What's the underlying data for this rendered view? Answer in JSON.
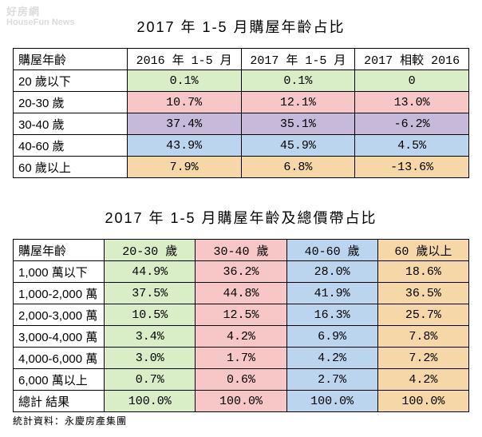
{
  "watermark": {
    "line1": "好房網",
    "line2": "HouseFun News"
  },
  "title1": "2017 年 1-5 月購屋年齡占比",
  "table1": {
    "columns": [
      "購屋年齡",
      "2016 年 1-5 月",
      "2017 年 1-5 月",
      "2017 相較 2016"
    ],
    "rows": [
      {
        "label": "20 歲以下",
        "a": "0.1%",
        "b": "0.1%",
        "c": "0",
        "bg": "#d9edc7"
      },
      {
        "label": "20-30 歲",
        "a": "10.7%",
        "b": "12.1%",
        "c": "13.0%",
        "bg": "#f7c6c6"
      },
      {
        "label": "30-40 歲",
        "a": "37.4%",
        "b": "35.1%",
        "c": "-6.2%",
        "bg": "#c7b9d9"
      },
      {
        "label": "40-60 歲",
        "a": "43.9%",
        "b": "45.9%",
        "c": "4.5%",
        "bg": "#bcd5ef"
      },
      {
        "label": "60 歲以上",
        "a": "7.9%",
        "b": "6.8%",
        "c": "-13.6%",
        "bg": "#f6d7a8"
      }
    ]
  },
  "title2": "2017 年 1-5 月購屋年齡及總價帶占比",
  "table2": {
    "columns": [
      "購屋年齡",
      "20-30 歲",
      "30-40 歲",
      "40-60 歲",
      "60 歲以上"
    ],
    "col_bg": [
      "#ffffff",
      "#d9edc7",
      "#f7c6c6",
      "#bcd5ef",
      "#f6d7a8"
    ],
    "rows": [
      {
        "label": "1,000 萬以下",
        "v": [
          "44.9%",
          "36.2%",
          "28.0%",
          "18.6%"
        ]
      },
      {
        "label": "1,000-2,000 萬",
        "v": [
          "37.5%",
          "44.8%",
          "41.9%",
          "36.5%"
        ]
      },
      {
        "label": "2,000-3,000 萬",
        "v": [
          "10.5%",
          "12.5%",
          "16.3%",
          "25.7%"
        ]
      },
      {
        "label": "3,000-4,000 萬",
        "v": [
          "3.4%",
          "4.2%",
          "6.9%",
          "7.8%"
        ]
      },
      {
        "label": "4,000-6,000 萬",
        "v": [
          "3.0%",
          "1.7%",
          "4.2%",
          "7.2%"
        ]
      },
      {
        "label": "6,000 萬以上",
        "v": [
          "0.7%",
          "0.6%",
          "2.7%",
          "4.2%"
        ]
      },
      {
        "label": "總計 結果",
        "v": [
          "100.0%",
          "100.0%",
          "100.0%",
          "100.0%"
        ]
      }
    ]
  },
  "source": "統計資料：永慶房產集團"
}
